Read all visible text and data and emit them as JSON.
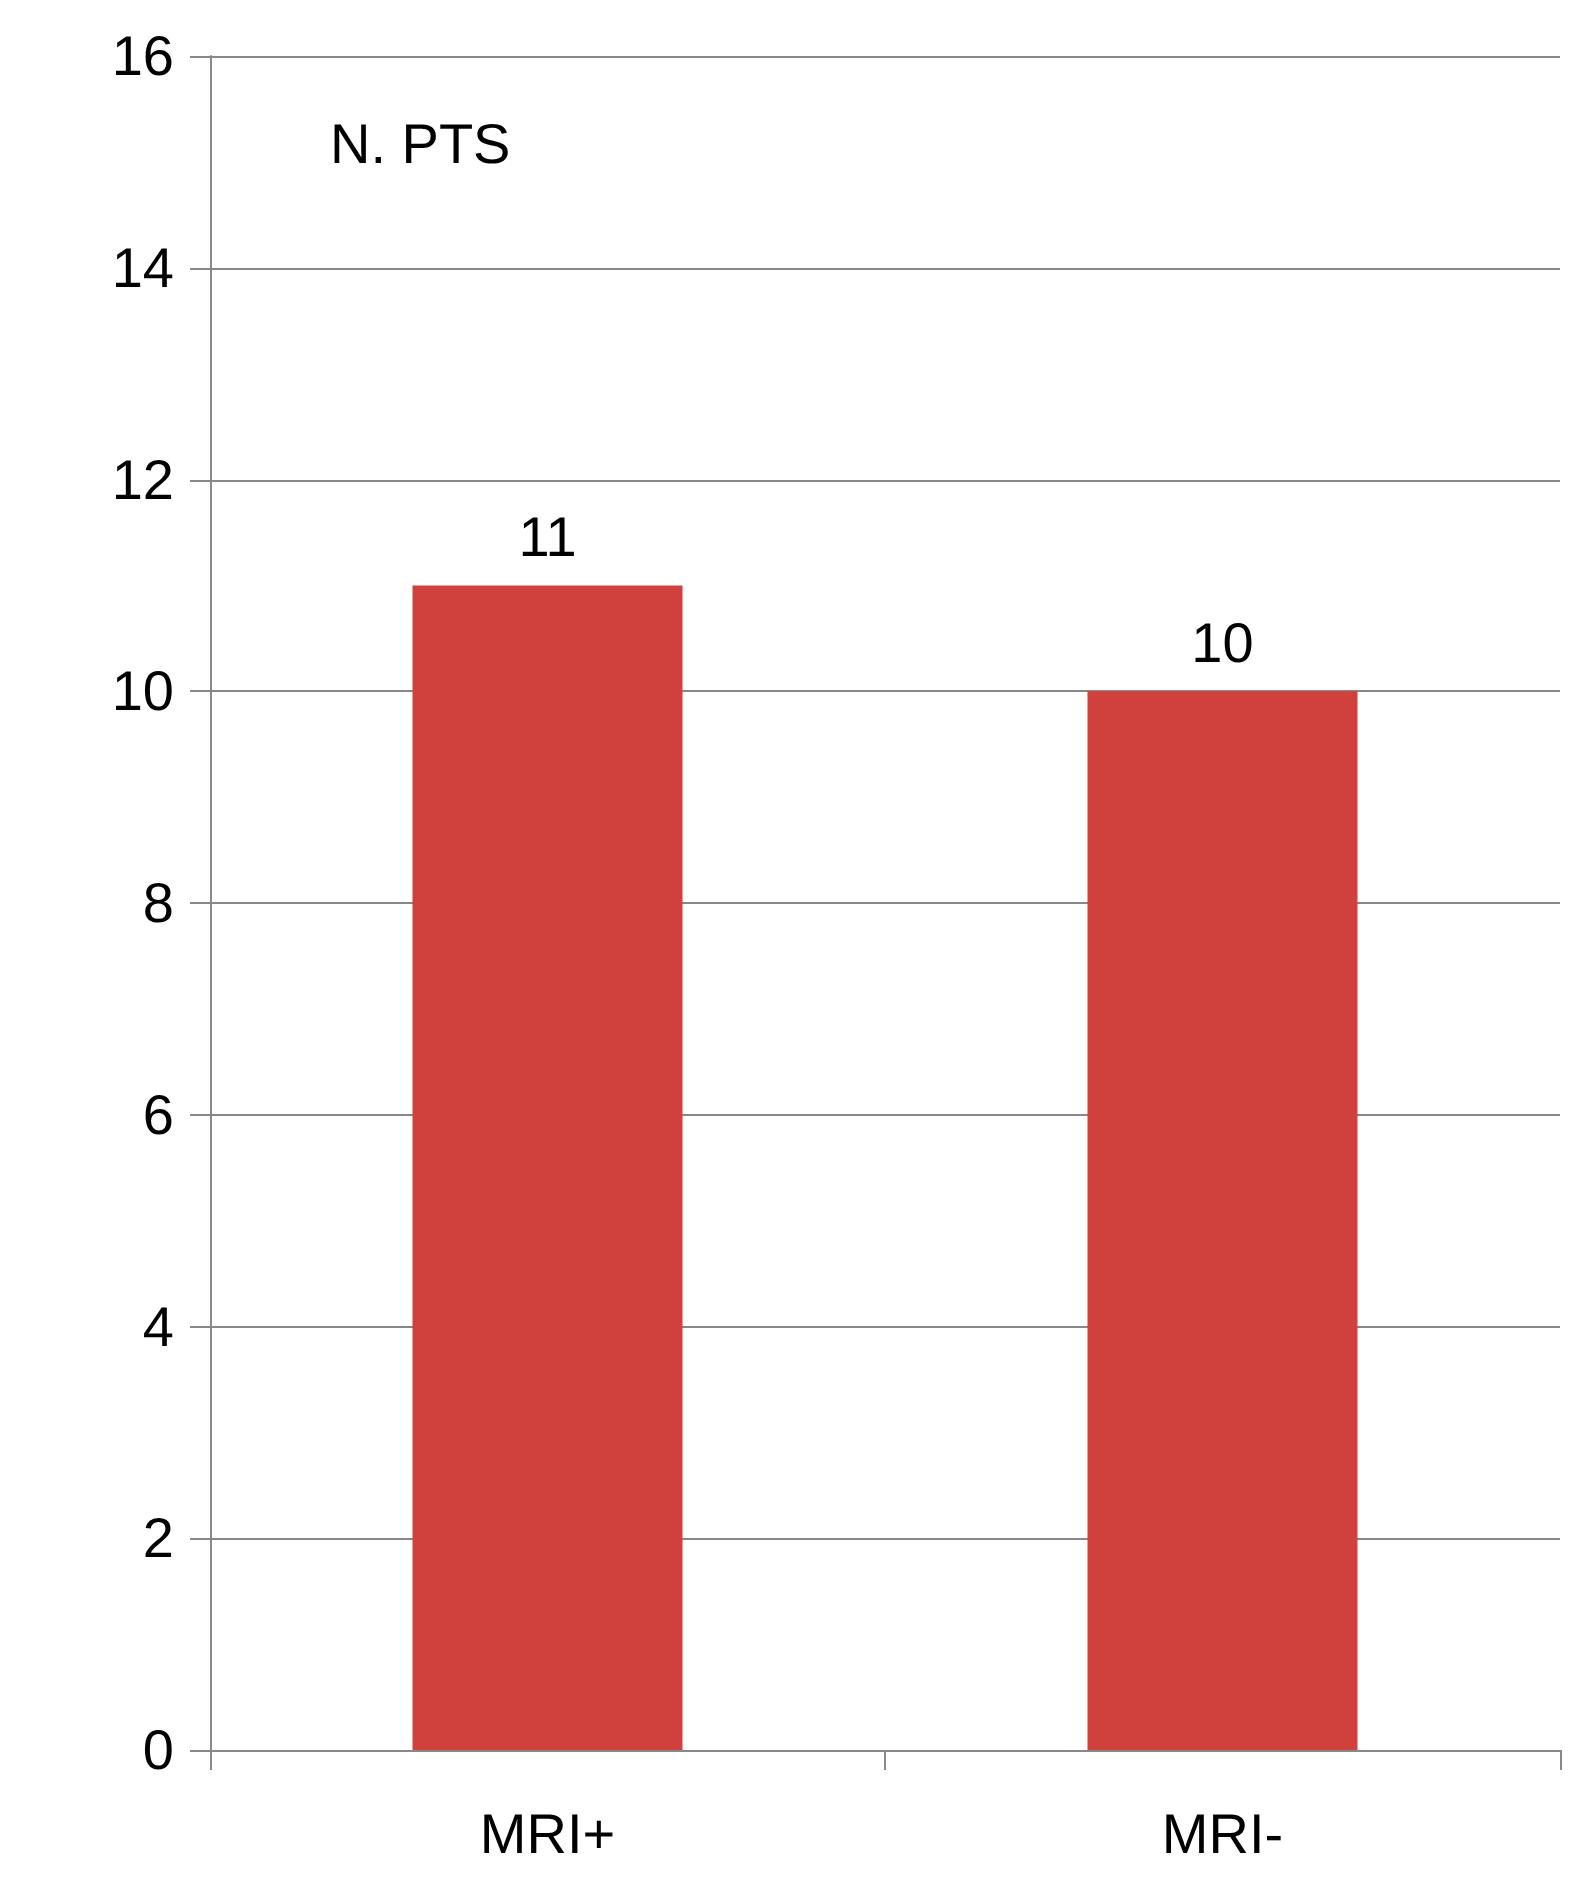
{
  "chart_data": {
    "type": "bar",
    "ylabel": "N. PTS",
    "categories": [
      "MRI+",
      "MRI-"
    ],
    "values": [
      11,
      10
    ],
    "color": "#d0403c",
    "ylim": [
      0,
      16
    ],
    "yticks": [
      0,
      2,
      4,
      6,
      8,
      10,
      12,
      14,
      16
    ],
    "grid": "y",
    "data_labels": true
  }
}
